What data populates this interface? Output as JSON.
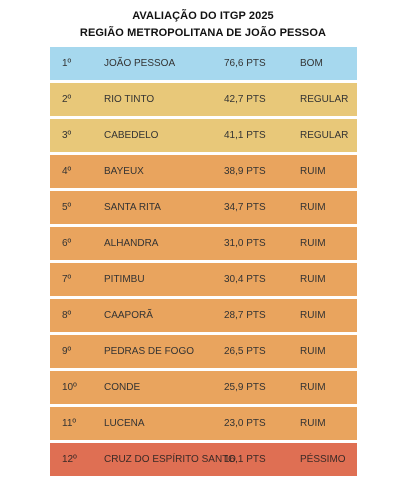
{
  "header": {
    "title_line1": "AVALIAÇÃO DO ITGP 2025",
    "title_line2": "REGIÃO METROPOLITANA DE JOÃO PESSOA"
  },
  "colors": {
    "BOM": "#a6d8ee",
    "REGULAR": "#e8c879",
    "RUIM": "#e9a45e",
    "PÉSSIMO": "#df6f53"
  },
  "chart_data": {
    "type": "table",
    "title": "AVALIAÇÃO DO ITGP 2025 — REGIÃO METROPOLITANA DE JOÃO PESSOA",
    "columns": [
      "rank",
      "city",
      "score",
      "grade"
    ],
    "unit": "PTS",
    "rows": [
      {
        "rank": "1º",
        "city": "JOÃO PESSOA",
        "score": 76.6,
        "score_label": "76,6 PTS",
        "grade": "BOM"
      },
      {
        "rank": "2º",
        "city": "RIO TINTO",
        "score": 42.7,
        "score_label": "42,7 PTS",
        "grade": "REGULAR"
      },
      {
        "rank": "3º",
        "city": "CABEDELO",
        "score": 41.1,
        "score_label": "41,1 PTS",
        "grade": "REGULAR"
      },
      {
        "rank": "4º",
        "city": "BAYEUX",
        "score": 38.9,
        "score_label": "38,9 PTS",
        "grade": "RUIM"
      },
      {
        "rank": "5º",
        "city": "SANTA RITA",
        "score": 34.7,
        "score_label": "34,7 PTS",
        "grade": "RUIM"
      },
      {
        "rank": "6º",
        "city": "ALHANDRA",
        "score": 31.0,
        "score_label": "31,0 PTS",
        "grade": "RUIM"
      },
      {
        "rank": "7º",
        "city": "PITIMBU",
        "score": 30.4,
        "score_label": "30,4 PTS",
        "grade": "RUIM"
      },
      {
        "rank": "8º",
        "city": "CAAPORÃ",
        "score": 28.7,
        "score_label": "28,7 PTS",
        "grade": "RUIM"
      },
      {
        "rank": "9º",
        "city": "PEDRAS DE FOGO",
        "score": 26.5,
        "score_label": "26,5 PTS",
        "grade": "RUIM"
      },
      {
        "rank": "10º",
        "city": "CONDE",
        "score": 25.9,
        "score_label": "25,9 PTS",
        "grade": "RUIM"
      },
      {
        "rank": "11º",
        "city": "LUCENA",
        "score": 23.0,
        "score_label": "23,0 PTS",
        "grade": "RUIM"
      },
      {
        "rank": "12º",
        "city": "CRUZ DO ESPÍRITO SANTO",
        "score": 16.1,
        "score_label": "16,1 PTS",
        "grade": "PÉSSIMO"
      }
    ]
  }
}
